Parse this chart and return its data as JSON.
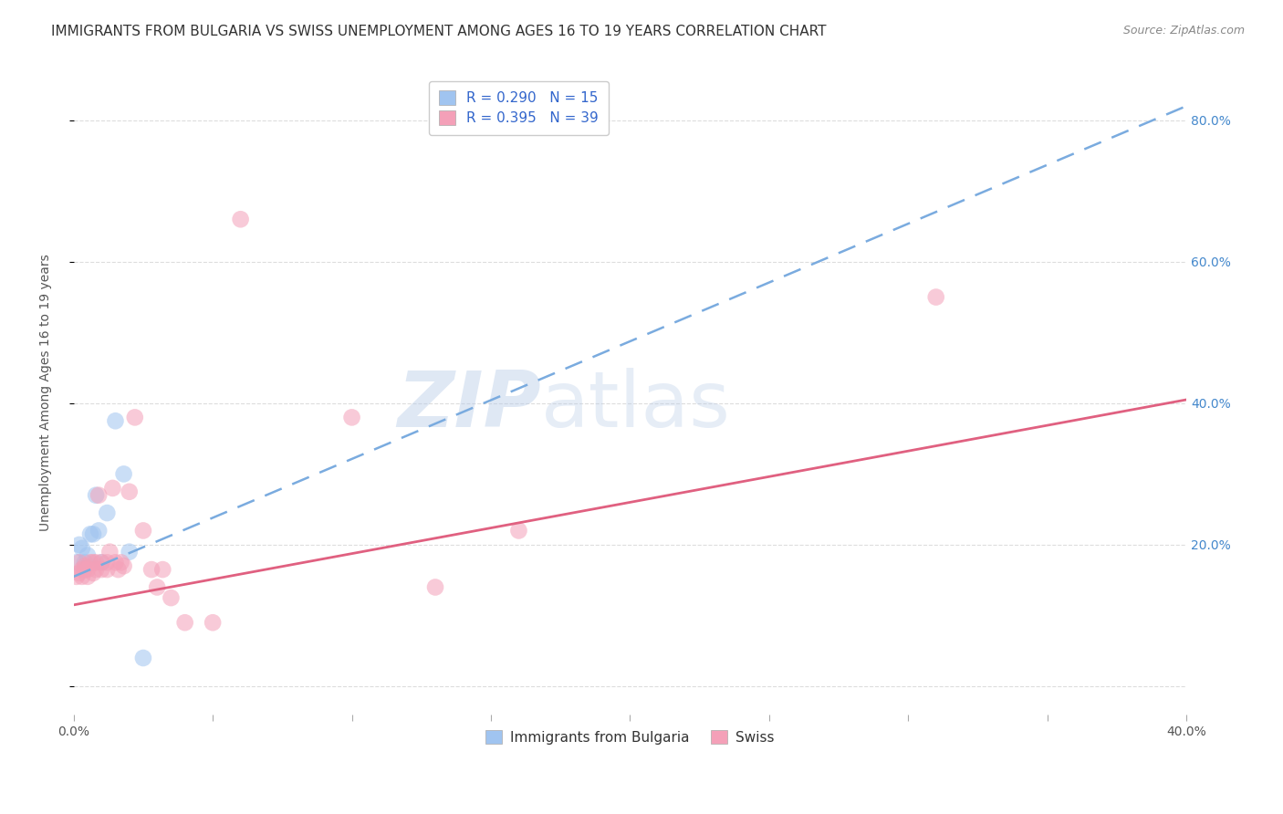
{
  "title": "IMMIGRANTS FROM BULGARIA VS SWISS UNEMPLOYMENT AMONG AGES 16 TO 19 YEARS CORRELATION CHART",
  "source": "Source: ZipAtlas.com",
  "ylabel": "Unemployment Among Ages 16 to 19 years",
  "xlim": [
    0.0,
    0.4
  ],
  "ylim": [
    -0.04,
    0.87
  ],
  "bg_color": "#ffffff",
  "grid_color": "#dddddd",
  "watermark": "ZIPatlas",
  "watermark_color": "#c8d8f0",
  "blue_scatter_x": [
    0.001,
    0.002,
    0.003,
    0.004,
    0.005,
    0.006,
    0.007,
    0.008,
    0.009,
    0.01,
    0.012,
    0.015,
    0.018,
    0.02,
    0.025
  ],
  "blue_scatter_y": [
    0.175,
    0.2,
    0.195,
    0.175,
    0.185,
    0.215,
    0.215,
    0.27,
    0.22,
    0.175,
    0.245,
    0.375,
    0.3,
    0.19,
    0.04
  ],
  "pink_scatter_x": [
    0.001,
    0.002,
    0.002,
    0.003,
    0.003,
    0.004,
    0.004,
    0.005,
    0.005,
    0.006,
    0.007,
    0.007,
    0.008,
    0.008,
    0.009,
    0.01,
    0.01,
    0.012,
    0.012,
    0.013,
    0.014,
    0.015,
    0.016,
    0.017,
    0.018,
    0.02,
    0.022,
    0.025,
    0.028,
    0.03,
    0.032,
    0.035,
    0.04,
    0.05,
    0.06,
    0.1,
    0.13,
    0.16,
    0.31
  ],
  "pink_scatter_y": [
    0.155,
    0.175,
    0.16,
    0.155,
    0.165,
    0.165,
    0.17,
    0.165,
    0.155,
    0.175,
    0.16,
    0.175,
    0.175,
    0.165,
    0.27,
    0.165,
    0.175,
    0.175,
    0.165,
    0.19,
    0.28,
    0.175,
    0.165,
    0.175,
    0.17,
    0.275,
    0.38,
    0.22,
    0.165,
    0.14,
    0.165,
    0.125,
    0.09,
    0.09,
    0.66,
    0.38,
    0.14,
    0.22,
    0.55
  ],
  "blue_trend_x": [
    0.0,
    0.4
  ],
  "blue_trend_y": [
    0.155,
    0.82
  ],
  "pink_trend_x": [
    0.0,
    0.4
  ],
  "pink_trend_y": [
    0.115,
    0.405
  ],
  "blue_dot_color": "#a0c4f0",
  "pink_dot_color": "#f4a0b8",
  "blue_trend_color": "#7aabdf",
  "pink_trend_color": "#e06080",
  "scatter_size": 180,
  "scatter_alpha": 0.55,
  "title_fontsize": 11,
  "axis_label_fontsize": 10,
  "tick_fontsize": 10,
  "right_tick_color": "#4488cc",
  "legend_entries": [
    {
      "label": "R = 0.290   N = 15"
    },
    {
      "label": "R = 0.395   N = 39"
    }
  ],
  "legend_bottom": [
    "Immigrants from Bulgaria",
    "Swiss"
  ]
}
